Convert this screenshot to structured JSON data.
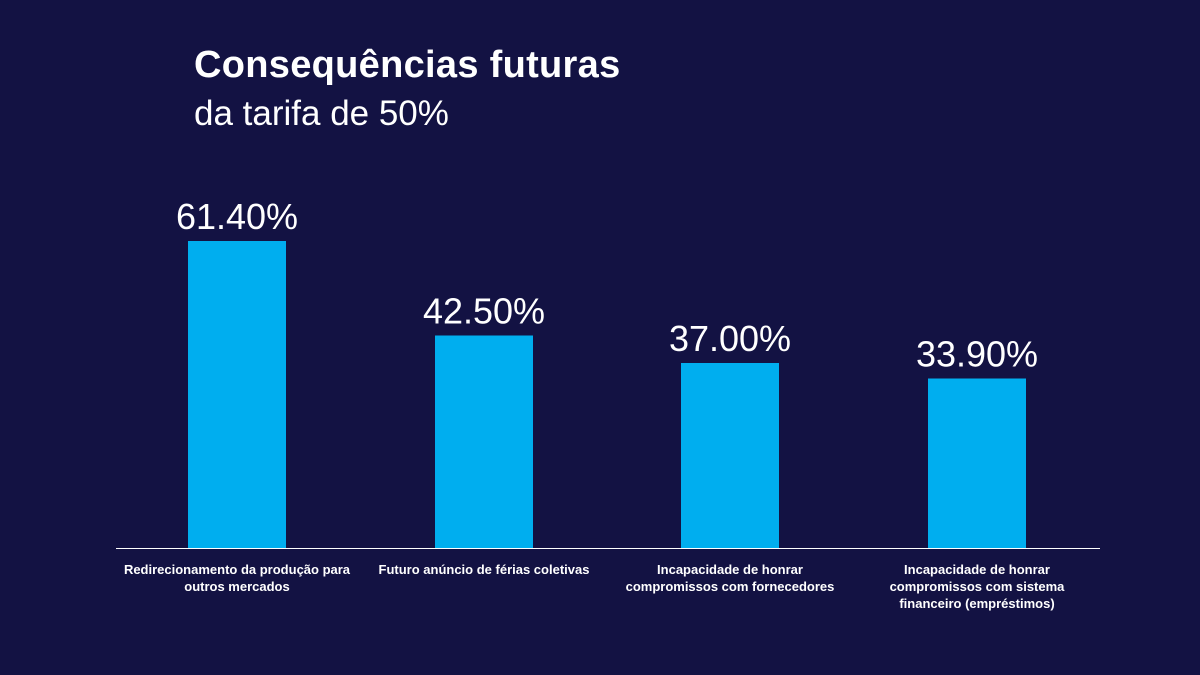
{
  "title": "Consequências futuras",
  "subtitle": "da tarifa de 50%",
  "chart_data": {
    "type": "bar",
    "categories": [
      "Redirecionamento da produção para outros mercados",
      "Futuro anúncio de férias coletivas",
      "Incapacidade de honrar compromissos com fornecedores",
      "Incapacidade de honrar compromissos com sistema financeiro (empréstimos)"
    ],
    "values": [
      61.4,
      42.5,
      37.0,
      33.9
    ],
    "data_labels": [
      "61.40%",
      "42.50%",
      "37.00%",
      "33.90%"
    ],
    "ylim": [
      0,
      100
    ],
    "bar_color": "#00AEEF",
    "axis_color": "#FFFFFF",
    "grid": false,
    "legend": "none"
  }
}
